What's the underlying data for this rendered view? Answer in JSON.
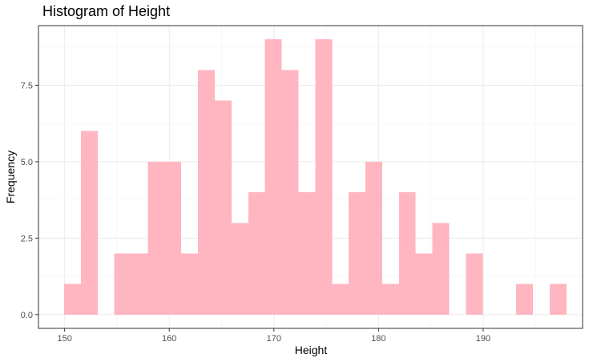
{
  "chart_data": {
    "type": "bar",
    "title": "Histogram of Height",
    "xlabel": "Height",
    "ylabel": "Frequency",
    "xlim": [
      147.5,
      199.5
    ],
    "ylim": [
      -0.45,
      9.45
    ],
    "x_ticks": [
      150,
      160,
      170,
      180,
      190
    ],
    "y_ticks": [
      0,
      2.5,
      5,
      7.5
    ],
    "y_tick_labels": [
      "0.0",
      "2.5",
      "5.0",
      "7.5"
    ],
    "grid": true,
    "bar_color": "#ffb6c1",
    "bins": [
      {
        "x0": 149.95,
        "x1": 151.55,
        "count": 1
      },
      {
        "x0": 151.55,
        "x1": 153.15,
        "count": 6
      },
      {
        "x0": 153.15,
        "x1": 154.75,
        "count": 0
      },
      {
        "x0": 154.75,
        "x1": 156.35,
        "count": 2
      },
      {
        "x0": 156.35,
        "x1": 157.95,
        "count": 2
      },
      {
        "x0": 157.95,
        "x1": 159.55,
        "count": 5
      },
      {
        "x0": 159.55,
        "x1": 161.15,
        "count": 5
      },
      {
        "x0": 161.15,
        "x1": 162.75,
        "count": 2
      },
      {
        "x0": 162.75,
        "x1": 164.35,
        "count": 8
      },
      {
        "x0": 164.35,
        "x1": 165.95,
        "count": 7
      },
      {
        "x0": 165.95,
        "x1": 167.55,
        "count": 3
      },
      {
        "x0": 167.55,
        "x1": 169.15,
        "count": 4
      },
      {
        "x0": 169.15,
        "x1": 170.75,
        "count": 9
      },
      {
        "x0": 170.75,
        "x1": 172.35,
        "count": 8
      },
      {
        "x0": 172.35,
        "x1": 173.95,
        "count": 4
      },
      {
        "x0": 173.95,
        "x1": 175.55,
        "count": 9
      },
      {
        "x0": 175.55,
        "x1": 177.15,
        "count": 1
      },
      {
        "x0": 177.15,
        "x1": 178.75,
        "count": 4
      },
      {
        "x0": 178.75,
        "x1": 180.35,
        "count": 5
      },
      {
        "x0": 180.35,
        "x1": 181.95,
        "count": 1
      },
      {
        "x0": 181.95,
        "x1": 183.55,
        "count": 4
      },
      {
        "x0": 183.55,
        "x1": 185.15,
        "count": 2
      },
      {
        "x0": 185.15,
        "x1": 186.75,
        "count": 3
      },
      {
        "x0": 186.75,
        "x1": 188.35,
        "count": 0
      },
      {
        "x0": 188.35,
        "x1": 189.95,
        "count": 2
      },
      {
        "x0": 189.95,
        "x1": 191.55,
        "count": 0
      },
      {
        "x0": 191.55,
        "x1": 193.15,
        "count": 0
      },
      {
        "x0": 193.15,
        "x1": 194.75,
        "count": 1
      },
      {
        "x0": 194.75,
        "x1": 196.35,
        "count": 0
      },
      {
        "x0": 196.35,
        "x1": 197.95,
        "count": 1
      }
    ]
  }
}
